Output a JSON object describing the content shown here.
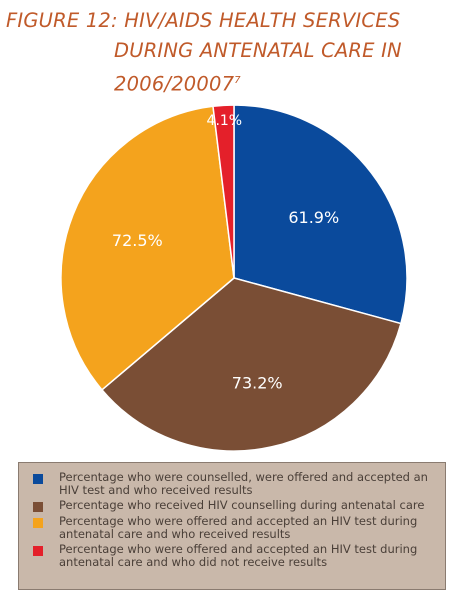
{
  "chart_data": {
    "type": "pie",
    "title_lines": [
      "FIGURE 12: HIV/AIDS HEALTH SERVICES",
      "DURING ANTENATAL CARE  IN",
      "2006/20007"
    ],
    "title_superscript": "7",
    "slices": [
      {
        "label": "Percentage who were counselled, were offered and accepted an HIV test and who received results",
        "value": 61.9,
        "value_label": "61.9%",
        "color": "#0a4a9c"
      },
      {
        "label": "Percentage who received HIV counselling during antenatal care",
        "value": 73.2,
        "value_label": "73.2%",
        "color": "#7a4e35"
      },
      {
        "label": "Percentage who were offered and accepted an HIV test during antenatal care and who received results",
        "value": 72.5,
        "value_label": "72.5%",
        "color": "#f4a31d"
      },
      {
        "label": "Percentage who were offered and accepted an HIV test during antenatal care and who did not receive results",
        "value": 4.1,
        "value_label": "4.1%",
        "color": "#e4202a"
      }
    ],
    "legend_placement": "bottom"
  }
}
